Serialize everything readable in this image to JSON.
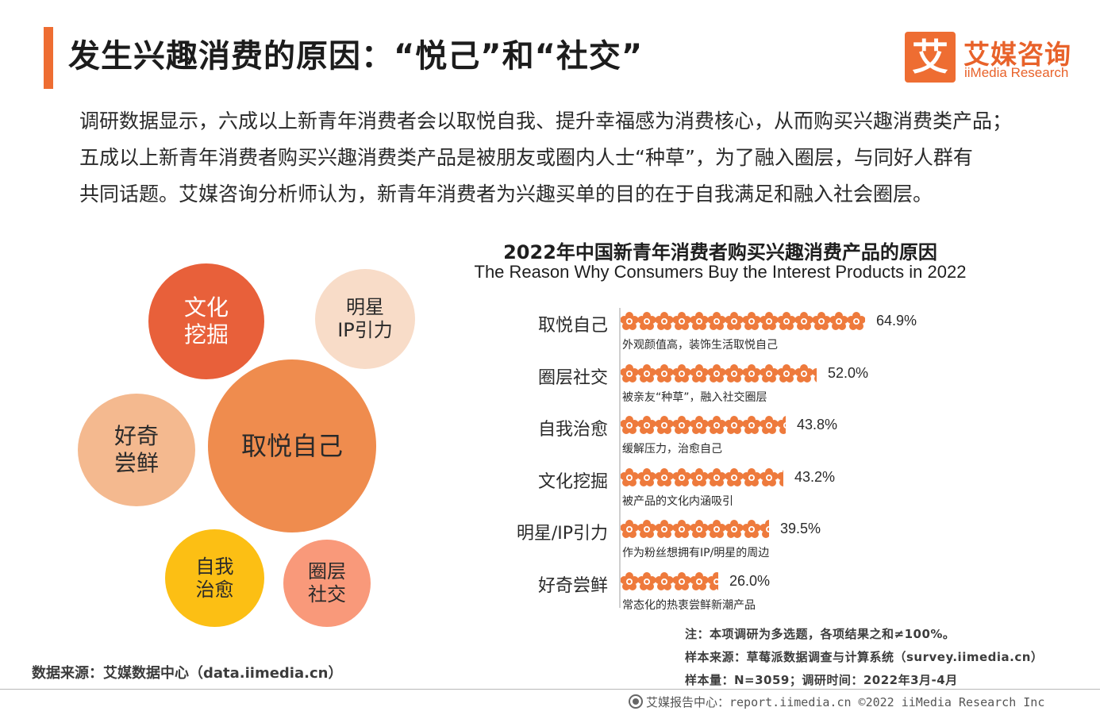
{
  "header": {
    "title": "发生兴趣消费的原因：“悦己”和“社交”",
    "logo_glyph": "艾",
    "logo_cn": "艾媒咨询",
    "logo_en": "iiMedia Research"
  },
  "intro_lines": [
    "调研数据显示，六成以上新青年消费者会以取悦自我、提升幸福感为消费核心，从而购买兴趣消费类产品；",
    "五成以上新青年消费者购买兴趣消费类产品是被朋友或圈内人士“种草”，为了融入圈层，与同好人群有",
    "共同话题。艾媒咨询分析师认为，新青年消费者为兴趣买单的目的在于自我满足和融入社会圈层。"
  ],
  "bubbles": [
    {
      "label": "文化\n挖掘",
      "color": "#e8603a",
      "text_color": "#ffffff"
    },
    {
      "label": "明星\nIP引力",
      "color": "#f8dcc8",
      "text_color": "#2a2a2a"
    },
    {
      "label": "取悦自己",
      "color": "#ef8c4e",
      "text_color": "#2a2a2a"
    },
    {
      "label": "好奇\n尝鲜",
      "color": "#f4b98f",
      "text_color": "#2a2a2a"
    },
    {
      "label": "自我\n治愈",
      "color": "#fcbf14",
      "text_color": "#2a2a2a"
    },
    {
      "label": "圈层\n社交",
      "color": "#f9997a",
      "text_color": "#2a2a2a"
    }
  ],
  "chart_data": {
    "type": "bar",
    "title": "2022年中国新青年消费者购买兴趣消费产品的原因",
    "subtitle": "The Reason Why Consumers Buy the Interest Products in 2022",
    "categories": [
      "取悦自己",
      "圈层社交",
      "自我治愈",
      "文化挖掘",
      "明星/IP引力",
      "好奇尝鲜"
    ],
    "values": [
      64.9,
      52.0,
      43.8,
      43.2,
      39.5,
      26.0
    ],
    "value_labels": [
      "64.9%",
      "52.0%",
      "43.8%",
      "43.2%",
      "39.5%",
      "26.0%"
    ],
    "descriptions": [
      "外观颜值高，装饰生活取悦自己",
      "被亲友“种草”，融入社交圈层",
      "缓解压力，治愈自己",
      "被产品的文化内涵吸引",
      "作为粉丝想拥有IP/明星的周边",
      "常态化的热衷尝鲜新潮产品"
    ],
    "unit": "%",
    "icon": "flower-icon",
    "icon_color": "#ee7a3c"
  },
  "notes": [
    "注：本项调研为多选题，各项结果之和≠100%。",
    "样本来源：草莓派数据调查与计算系统（survey.iimedia.cn）",
    "样本量：N=3059；调研时间：2022年3月-4月"
  ],
  "source": "数据来源：艾媒数据中心（data.iimedia.cn）",
  "footer": "艾媒报告中心：report.iimedia.cn  ©2022  iiMedia Research  Inc"
}
